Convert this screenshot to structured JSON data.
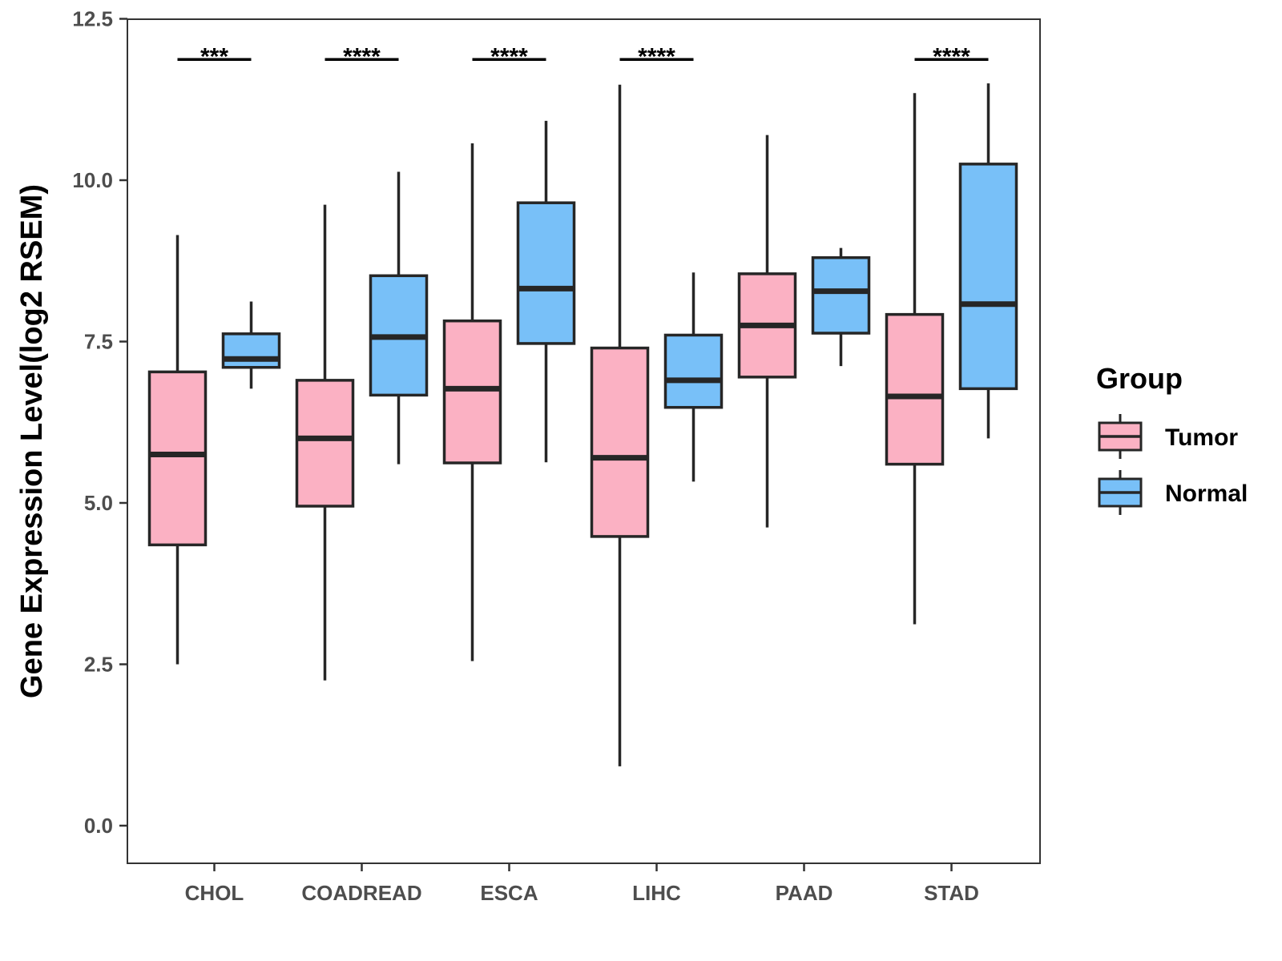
{
  "chart_data": {
    "type": "boxplot",
    "title": "",
    "xlabel": "",
    "ylabel": "Gene Expression Level(log2 RSEM)",
    "ylim": [
      -0.6,
      12.5
    ],
    "yticks": [
      "0.0",
      "2.5",
      "5.0",
      "7.5",
      "10.0",
      "12.5"
    ],
    "ytick_values": [
      0,
      2.5,
      5,
      7.5,
      10,
      12.5
    ],
    "categories": [
      "CHOL",
      "COADREAD",
      "ESCA",
      "LIHC",
      "PAAD",
      "STAD"
    ],
    "legend": {
      "title": "Group",
      "position": "right",
      "entries": [
        {
          "name": "Tumor",
          "color": "#fbb1c3"
        },
        {
          "name": "Normal",
          "color": "#78c0f8"
        }
      ]
    },
    "series": [
      {
        "name": "Tumor",
        "color": "#fbb1c3",
        "boxes": [
          {
            "category": "CHOL",
            "whisker_low": 2.5,
            "q1": 4.35,
            "median": 5.75,
            "q3": 7.03,
            "whisker_high": 9.15
          },
          {
            "category": "COADREAD",
            "whisker_low": 2.25,
            "q1": 4.95,
            "median": 6.0,
            "q3": 6.9,
            "whisker_high": 9.62
          },
          {
            "category": "ESCA",
            "whisker_low": 2.55,
            "q1": 5.62,
            "median": 6.77,
            "q3": 7.82,
            "whisker_high": 10.57
          },
          {
            "category": "LIHC",
            "whisker_low": 0.92,
            "q1": 4.48,
            "median": 5.7,
            "q3": 7.4,
            "whisker_high": 11.48
          },
          {
            "category": "PAAD",
            "whisker_low": 4.62,
            "q1": 6.95,
            "median": 7.75,
            "q3": 8.55,
            "whisker_high": 10.7
          },
          {
            "category": "STAD",
            "whisker_low": 3.12,
            "q1": 5.6,
            "median": 6.65,
            "q3": 7.92,
            "whisker_high": 11.35
          }
        ]
      },
      {
        "name": "Normal",
        "color": "#78c0f8",
        "boxes": [
          {
            "category": "CHOL",
            "whisker_low": 6.77,
            "q1": 7.1,
            "median": 7.23,
            "q3": 7.62,
            "whisker_high": 8.12
          },
          {
            "category": "COADREAD",
            "whisker_low": 5.6,
            "q1": 6.67,
            "median": 7.57,
            "q3": 8.52,
            "whisker_high": 10.13
          },
          {
            "category": "ESCA",
            "whisker_low": 5.63,
            "q1": 7.47,
            "median": 8.32,
            "q3": 9.65,
            "whisker_high": 10.92
          },
          {
            "category": "LIHC",
            "whisker_low": 5.33,
            "q1": 6.48,
            "median": 6.9,
            "q3": 7.6,
            "whisker_high": 8.57
          },
          {
            "category": "PAAD",
            "whisker_low": 7.12,
            "q1": 7.63,
            "median": 8.28,
            "q3": 8.8,
            "whisker_high": 8.95
          },
          {
            "category": "STAD",
            "whisker_low": 6.0,
            "q1": 6.77,
            "median": 8.08,
            "q3": 10.25,
            "whisker_high": 11.5
          }
        ]
      }
    ],
    "significance": [
      {
        "category": "CHOL",
        "label": "***"
      },
      {
        "category": "COADREAD",
        "label": "****"
      },
      {
        "category": "ESCA",
        "label": "****"
      },
      {
        "category": "LIHC",
        "label": "****"
      },
      {
        "category": "PAAD",
        "label": ""
      },
      {
        "category": "STAD",
        "label": "****"
      }
    ],
    "significance_level": 11.87
  }
}
